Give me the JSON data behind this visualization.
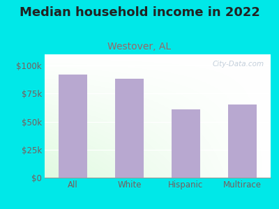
{
  "title": "Median household income in 2022",
  "subtitle": "Westover, AL",
  "categories": [
    "All",
    "White",
    "Hispanic",
    "Multirace"
  ],
  "values": [
    92000,
    88000,
    61000,
    65000
  ],
  "bar_color": "#b8a8d0",
  "title_fontsize": 13,
  "subtitle_fontsize": 10,
  "subtitle_color": "#996666",
  "title_color": "#222222",
  "background_outer": "#00e8e8",
  "yticks": [
    0,
    25000,
    50000,
    75000,
    100000
  ],
  "ytick_labels": [
    "$0",
    "$25k",
    "$50k",
    "$75k",
    "$100k"
  ],
  "ylim": [
    0,
    110000
  ],
  "tick_color": "#7a5c5c",
  "watermark": "City-Data.com"
}
